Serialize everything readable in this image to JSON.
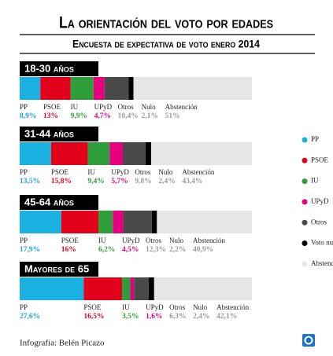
{
  "chart_data": {
    "type": "bar",
    "orientation": "horizontal",
    "stacked": true,
    "title": "La orientación del voto por edades",
    "subtitle": "Encuesta de expectativa de voto enero 2014",
    "credit": "Infografía: Belén Picazo",
    "categories": [
      "18-30 años",
      "31-44 años",
      "45-64 años",
      "Mayores de 65"
    ],
    "xlim": [
      0,
      100
    ],
    "series": [
      {
        "name": "PP",
        "label": "PP",
        "color": "#1ab0e0",
        "text_color": "#1aa3d6",
        "values": [
          8.9,
          13.5,
          17.9,
          27.6
        ],
        "value_labels": [
          "8,9%",
          "13,5%",
          "17,9%",
          "27,6%"
        ]
      },
      {
        "name": "PSOE",
        "label": "PSOE",
        "color": "#e3001b",
        "text_color": "#e3001b",
        "values": [
          13,
          15.8,
          16,
          16.5
        ],
        "value_labels": [
          "13%",
          "15,8%",
          "16%",
          "16,5%"
        ]
      },
      {
        "name": "IU",
        "label": "IU",
        "color": "#2e9e3a",
        "text_color": "#2e9e3a",
        "values": [
          9.9,
          9.4,
          6.2,
          3.5
        ],
        "value_labels": [
          "9,9%",
          "9,4%",
          "6,2%",
          "3,5%"
        ]
      },
      {
        "name": "UPyD",
        "label": "UPyD",
        "color": "#e5007e",
        "text_color": "#e5007e",
        "values": [
          4.7,
          5.7,
          4.5,
          1.6
        ],
        "value_labels": [
          "4,7%",
          "5,7%",
          "4,5%",
          "1,6%"
        ]
      },
      {
        "name": "Otros",
        "label": "Otros",
        "color": "#4a4a4a",
        "text_color": "#9a9a9a",
        "values": [
          10.4,
          9.8,
          12.3,
          6.3
        ],
        "value_labels": [
          "10,4%",
          "9,8%",
          "12,3%",
          "6,3%"
        ]
      },
      {
        "name": "Voto nulo",
        "label": "Nulo",
        "color": "#000000",
        "text_color": "#9a9a9a",
        "values": [
          2.1,
          2.4,
          2.2,
          2.4
        ],
        "value_labels": [
          "2,1%",
          "2,4%",
          "2,2%",
          "2,4%"
        ]
      },
      {
        "name": "Abstención",
        "label": "Abstención",
        "color": "#e6e6e6",
        "text_color": "#9a9a9a",
        "values": [
          51,
          43.4,
          40.9,
          42.1
        ],
        "value_labels": [
          "51%",
          "43,4%",
          "40,9%",
          "42,1%"
        ]
      }
    ]
  }
}
